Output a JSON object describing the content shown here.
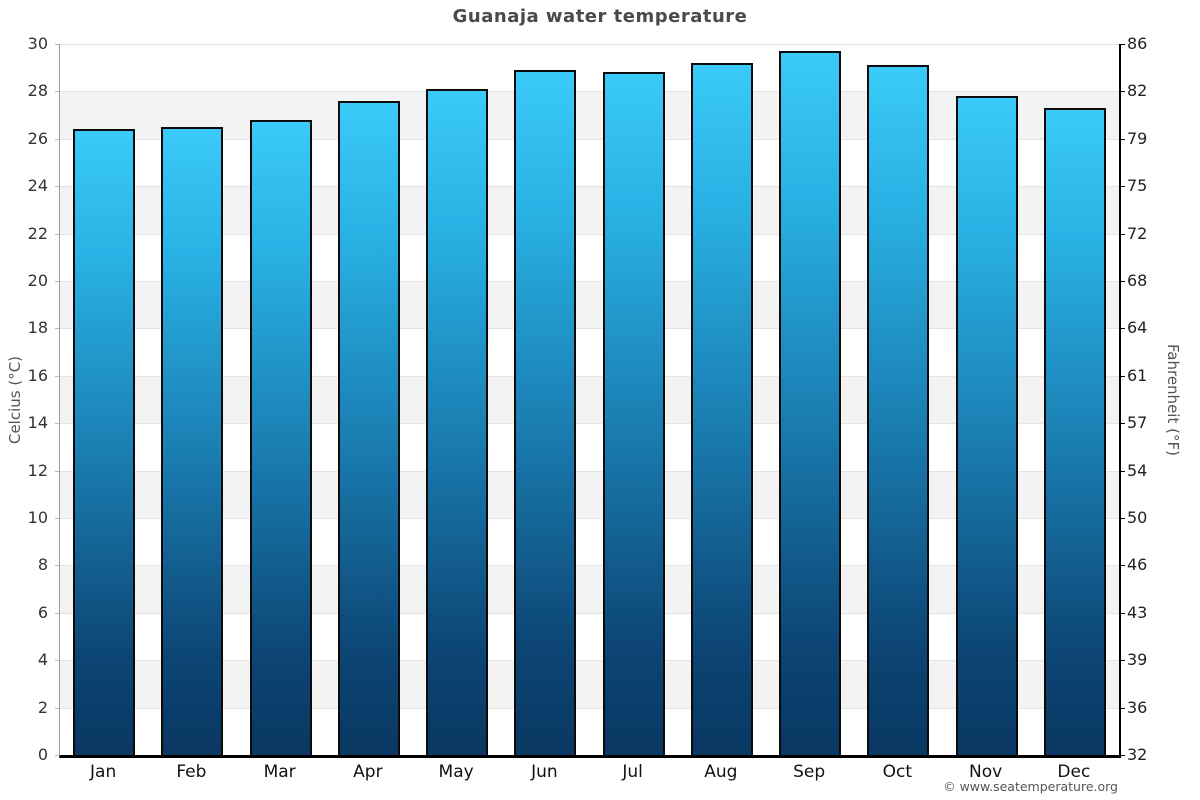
{
  "title": "Guanaja water temperature",
  "axes": {
    "left_title": "Celcius (°C)",
    "right_title": "Fahrenheit (°F)",
    "celsius_ticks": [
      30,
      28,
      26,
      24,
      22,
      20,
      18,
      16,
      14,
      12,
      10,
      8,
      6,
      4,
      2,
      0
    ],
    "fahrenheit_ticks": [
      86,
      82,
      79,
      75,
      72,
      68,
      64,
      61,
      57,
      54,
      50,
      46,
      43,
      39,
      36,
      32
    ]
  },
  "chart_data": {
    "type": "bar",
    "title": "Guanaja water temperature",
    "categories": [
      "Jan",
      "Feb",
      "Mar",
      "Apr",
      "May",
      "Jun",
      "Jul",
      "Aug",
      "Sep",
      "Oct",
      "Nov",
      "Dec"
    ],
    "values": [
      26.4,
      26.5,
      26.8,
      27.6,
      28.1,
      28.9,
      28.8,
      29.2,
      29.7,
      29.1,
      27.8,
      27.3
    ],
    "xlabel": "",
    "ylabel": "Celcius (°C)",
    "ylabel_right": "Fahrenheit (°F)",
    "ylim": [
      0,
      30
    ],
    "grid": "horizontal-bands",
    "band_step": 2,
    "band_colors": [
      "#ffffff",
      "#f3f3f3"
    ],
    "bar_gradient_top": "#3acaf8",
    "bar_gradient_mid": "#1a7db1",
    "bar_gradient_bottom": "#093862",
    "bar_border_color": "#0b0b0b",
    "legend": "none"
  },
  "footer": {
    "credit": "© www.seatemperature.org"
  }
}
